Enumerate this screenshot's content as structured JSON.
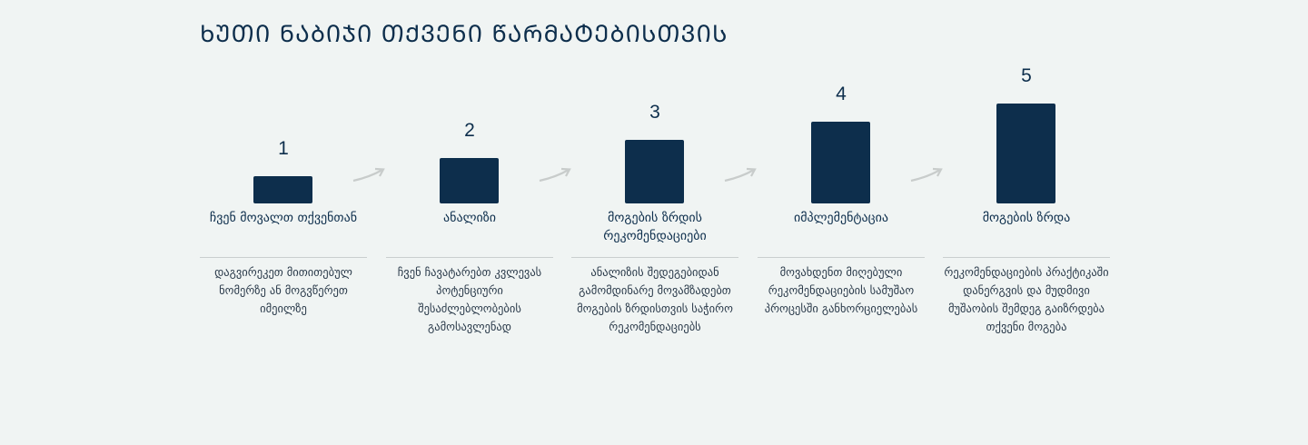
{
  "title": "ᲮᲣᲗᲘ ᲜᲐᲑᲘᲯᲘ ᲗᲥᲕᲔᲜᲘ ᲬᲐᲠᲛᲐᲢᲔᲑᲘᲡᲗᲕᲘᲡ",
  "colors": {
    "bar": "#0d2e4c",
    "background": "#f0f4f3",
    "arrow": "#c8cccb"
  },
  "steps": [
    {
      "number": "1",
      "label": "ჩვენ მოვალთ თქვენთან",
      "description": "დაგვირეკეთ მითითებულ ნომერზე ან მოგვწერეთ იმეილზე",
      "level": 1
    },
    {
      "number": "2",
      "label": "ანალიზი",
      "description": "ჩვენ ჩავატარებთ კვლევას პოტენციური შესაძლებლობების გამოსავლენად",
      "level": 2
    },
    {
      "number": "3",
      "label": "მოგების ზრდის რეკომენდაციები",
      "description": "ანალიზის შედეგებიდან გამომდინარე მოვამზადებთ მოგების ზრდისთვის საჭირო რეკომენდაციებს",
      "level": 3
    },
    {
      "number": "4",
      "label": "იმპლემენტაცია",
      "description": "მოვახდენთ მიღებული რეკომენდაციების სამუშაო პროცესში განხორციელებას",
      "level": 4
    },
    {
      "number": "5",
      "label": "მოგების ზრდა",
      "description": "რეკომენდაციების პრაქტიკაში დანერგვის და მუდმივი მუშაობის შემდეგ გაიზრდება თქვენი მოგება",
      "level": 5
    }
  ],
  "arrow_icon": "curved-arrow-right-icon"
}
